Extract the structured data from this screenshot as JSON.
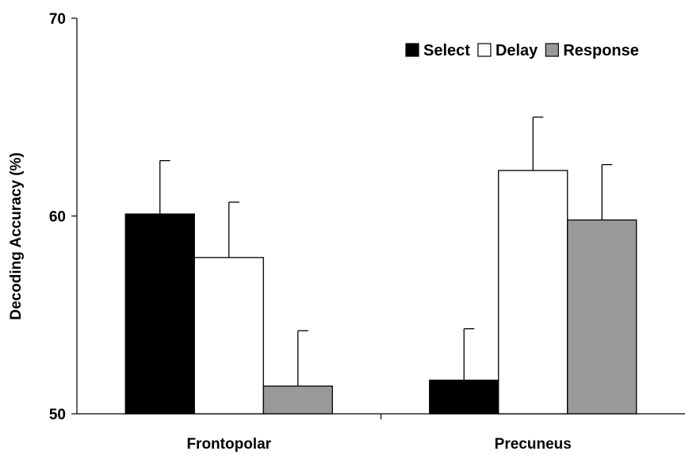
{
  "chart_data": {
    "type": "bar",
    "categories": [
      "Frontopolar",
      "Precuneus"
    ],
    "series": [
      {
        "name": "Select",
        "values": [
          60.1,
          51.7
        ],
        "errors": [
          2.7,
          2.6
        ],
        "color": "#000000"
      },
      {
        "name": "Delay",
        "values": [
          57.9,
          62.3
        ],
        "errors": [
          2.8,
          2.7
        ],
        "color": "#ffffff"
      },
      {
        "name": "Response",
        "values": [
          51.4,
          59.8
        ],
        "errors": [
          2.8,
          2.8
        ],
        "color": "#999999"
      }
    ],
    "ylabel": "Decoding Accuracy (%)",
    "xlabel": "",
    "ylim": [
      50,
      70
    ],
    "yticks": [
      "50",
      "60",
      "70"
    ],
    "grid": false,
    "legend_position": "top-right"
  }
}
